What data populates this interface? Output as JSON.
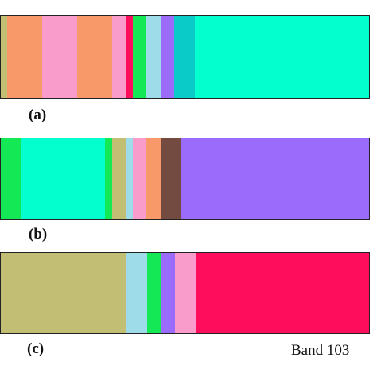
{
  "panels": [
    {
      "label": "(a)",
      "segments": [
        {
          "color": "#c2be74",
          "fraction": 0.018
        },
        {
          "color": "#f8996a",
          "fraction": 0.095
        },
        {
          "color": "#f99ccc",
          "fraction": 0.095
        },
        {
          "color": "#f8996a",
          "fraction": 0.095
        },
        {
          "color": "#f99ccc",
          "fraction": 0.037
        },
        {
          "color": "#ff0d5d",
          "fraction": 0.019
        },
        {
          "color": "#14e855",
          "fraction": 0.037
        },
        {
          "color": "#9edcea",
          "fraction": 0.038
        },
        {
          "color": "#9b6bfb",
          "fraction": 0.037
        },
        {
          "color": "#0acbc8",
          "fraction": 0.057
        },
        {
          "color": "#03ffcd",
          "fraction": 0.472
        }
      ]
    },
    {
      "label": "(b)",
      "segments": [
        {
          "color": "#14e855",
          "fraction": 0.056
        },
        {
          "color": "#03ffcd",
          "fraction": 0.228
        },
        {
          "color": "#14e855",
          "fraction": 0.019
        },
        {
          "color": "#c2be74",
          "fraction": 0.037
        },
        {
          "color": "#9edcea",
          "fraction": 0.019
        },
        {
          "color": "#f99ccc",
          "fraction": 0.037
        },
        {
          "color": "#f8996a",
          "fraction": 0.038
        },
        {
          "color": "#734b40",
          "fraction": 0.057
        },
        {
          "color": "#9b6bfb",
          "fraction": 0.509
        }
      ]
    },
    {
      "label": "(c)",
      "segments": [
        {
          "color": "#c2be74",
          "fraction": 0.342
        },
        {
          "color": "#9edcea",
          "fraction": 0.056
        },
        {
          "color": "#14e855",
          "fraction": 0.038
        },
        {
          "color": "#9b6bfb",
          "fraction": 0.037
        },
        {
          "color": "#f99ccc",
          "fraction": 0.057
        },
        {
          "color": "#ff0d5d",
          "fraction": 0.47
        }
      ]
    }
  ],
  "band_label": "Band 103"
}
